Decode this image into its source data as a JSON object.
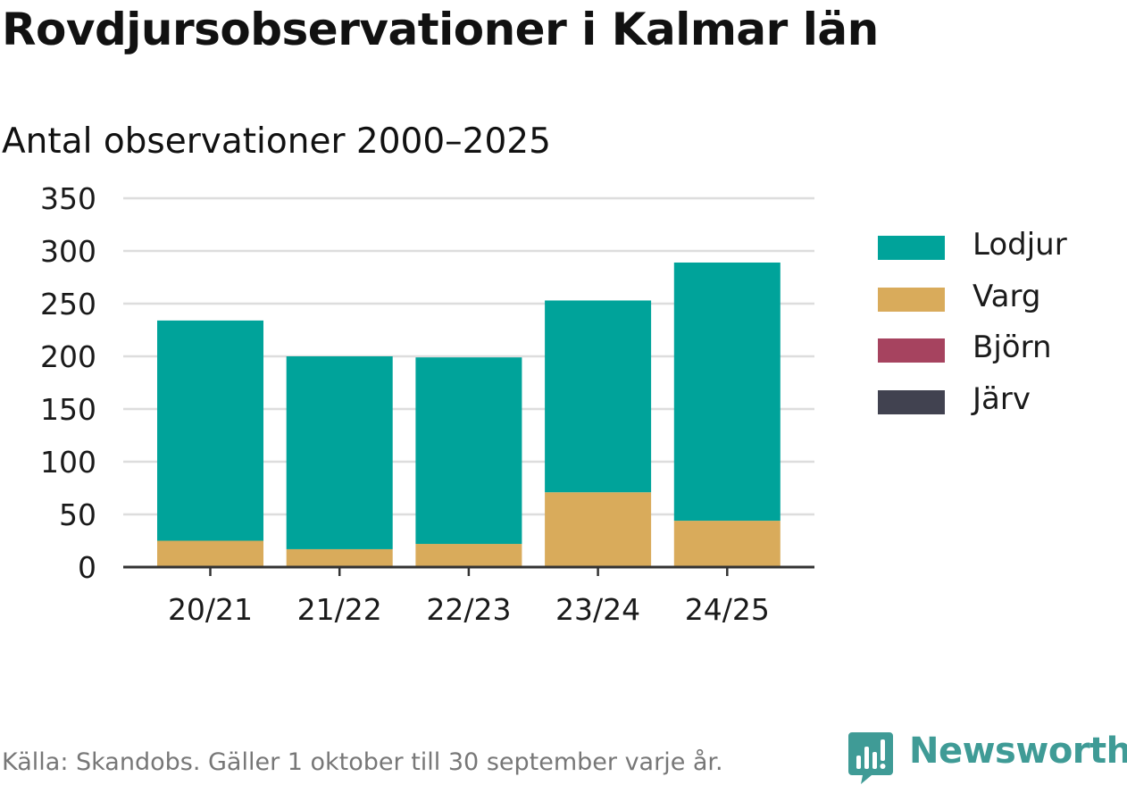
{
  "header": {
    "title": "Rovdjursobservationer i Kalmar län",
    "subtitle": "Antal observationer 2000–2025"
  },
  "footer": {
    "source": "Källa: Skandobs. Gäller 1 oktober till 30 september varje år.",
    "brand": "Newsworthy",
    "brand_icon": "newsworthy-logo-icon"
  },
  "colors": {
    "Lodjur": "#00a39a",
    "Varg": "#d9ab5b",
    "Björn": "#a6435f",
    "Järv": "#414250",
    "grid": "#dddddd",
    "axis": "#333333",
    "brand": "#3f9b96"
  },
  "chart_data": {
    "type": "bar",
    "stacked": true,
    "categories": [
      "20/21",
      "21/22",
      "22/23",
      "23/24",
      "24/25"
    ],
    "series": [
      {
        "name": "Varg",
        "values": [
          25,
          17,
          22,
          71,
          44
        ]
      },
      {
        "name": "Lodjur",
        "values": [
          209,
          183,
          177,
          182,
          245
        ]
      },
      {
        "name": "Björn",
        "values": [
          0,
          0,
          0,
          0,
          0
        ]
      },
      {
        "name": "Järv",
        "values": [
          0,
          0,
          0,
          0,
          0
        ]
      }
    ],
    "legend_order": [
      "Lodjur",
      "Varg",
      "Björn",
      "Järv"
    ],
    "ylim": [
      0,
      350
    ],
    "yticks": [
      0,
      50,
      100,
      150,
      200,
      250,
      300,
      350
    ],
    "ytick_labels": [
      "0",
      "50",
      "100",
      "150",
      "200",
      "250",
      "300",
      "350"
    ],
    "grid": true,
    "legend_position": "right",
    "xlabel": "",
    "ylabel": ""
  }
}
